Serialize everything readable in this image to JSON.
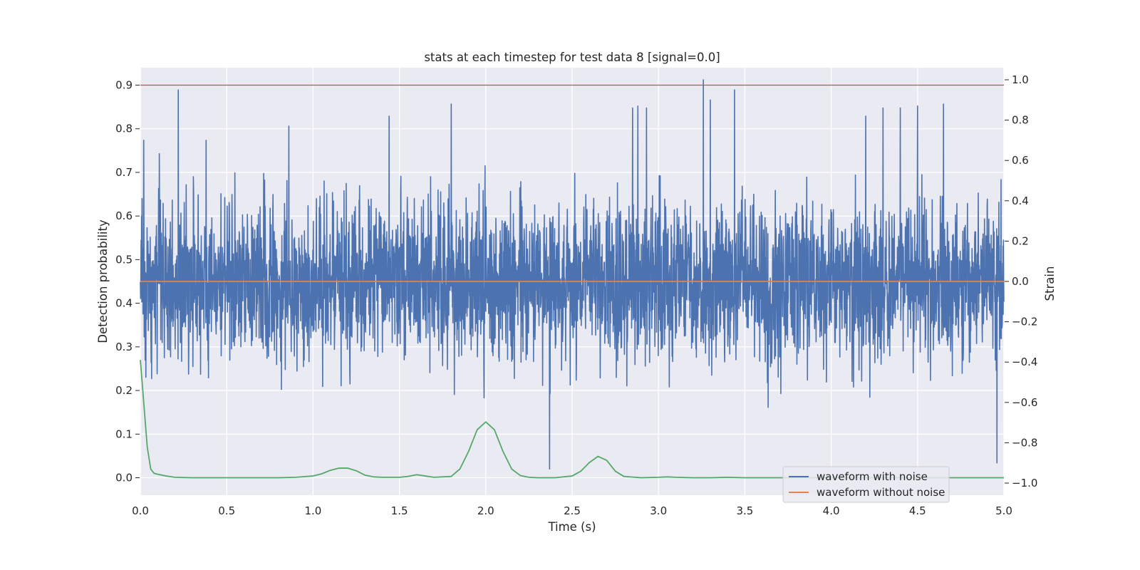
{
  "chart_data": {
    "type": "line",
    "title": "stats at each timestep for test data 8 [signal=0.0]",
    "xlabel": "Time (s)",
    "ylabel_left": "Detection probability",
    "ylabel_right": "Strain",
    "xlim": [
      0.0,
      5.0
    ],
    "ylim_left": [
      -0.04,
      0.94
    ],
    "ylim_right": [
      -1.06,
      1.06
    ],
    "x_ticks": [
      "0.0",
      "0.5",
      "1.0",
      "1.5",
      "2.0",
      "2.5",
      "3.0",
      "3.5",
      "4.0",
      "4.5",
      "5.0"
    ],
    "y_ticks_left": [
      "0.0",
      "0.1",
      "0.2",
      "0.3",
      "0.4",
      "0.5",
      "0.6",
      "0.7",
      "0.8",
      "0.9"
    ],
    "y_ticks_right": [
      "−1.0",
      "−0.8",
      "−0.6",
      "−0.4",
      "−0.2",
      "0.0",
      "0.2",
      "0.4",
      "0.6",
      "0.8",
      "1.0"
    ],
    "grid": true,
    "legend_position": "bottom-right",
    "threshold": {
      "axis": "left",
      "value": 0.9,
      "color": "#c44e52"
    },
    "series": [
      {
        "name": "waveform with noise",
        "axis": "right",
        "color": "#4c72b0",
        "style": "dense random noise, roughly symmetric around 0, peaks to about ±0.9",
        "spike_times": [
          0.02,
          0.22,
          0.38,
          0.86,
          1.44,
          1.8,
          2.37,
          2.85,
          2.88,
          2.93,
          3.26,
          3.3,
          3.44,
          4.2,
          4.3,
          4.4,
          4.5,
          4.65,
          4.96
        ],
        "spike_values": [
          0.7,
          0.95,
          0.7,
          0.77,
          0.82,
          0.88,
          -0.93,
          0.86,
          0.87,
          0.86,
          1.0,
          0.9,
          0.95,
          0.82,
          0.86,
          0.86,
          0.87,
          0.88,
          -0.9
        ]
      },
      {
        "name": "waveform without noise",
        "axis": "right",
        "color": "#dd8452",
        "x": [
          0.0,
          5.0
        ],
        "values": [
          0.0,
          0.0
        ]
      },
      {
        "axis": "left",
        "color": "#55a868",
        "x": [
          0.0,
          0.02,
          0.04,
          0.06,
          0.08,
          0.1,
          0.15,
          0.2,
          0.3,
          0.5,
          0.8,
          0.9,
          1.0,
          1.05,
          1.1,
          1.15,
          1.2,
          1.25,
          1.3,
          1.35,
          1.4,
          1.5,
          1.55,
          1.6,
          1.65,
          1.7,
          1.8,
          1.85,
          1.9,
          1.95,
          2.0,
          2.05,
          2.1,
          2.15,
          2.2,
          2.25,
          2.3,
          2.4,
          2.5,
          2.55,
          2.6,
          2.65,
          2.7,
          2.75,
          2.8,
          2.9,
          3.0,
          3.05,
          3.1,
          3.2,
          3.3,
          3.4,
          3.5,
          4.0,
          4.5,
          5.0
        ],
        "values": [
          0.27,
          0.17,
          0.07,
          0.02,
          0.01,
          0.008,
          0.004,
          0.001,
          0.0,
          0.0,
          0.0,
          0.001,
          0.004,
          0.009,
          0.017,
          0.022,
          0.022,
          0.016,
          0.006,
          0.002,
          0.001,
          0.001,
          0.003,
          0.007,
          0.004,
          0.001,
          0.003,
          0.02,
          0.06,
          0.11,
          0.128,
          0.11,
          0.06,
          0.02,
          0.005,
          0.001,
          0.0,
          0.0,
          0.004,
          0.015,
          0.035,
          0.049,
          0.04,
          0.015,
          0.003,
          0.0,
          0.001,
          0.002,
          0.001,
          0.0,
          0.0,
          0.001,
          0.0,
          0.0,
          0.0,
          0.0
        ]
      }
    ]
  }
}
